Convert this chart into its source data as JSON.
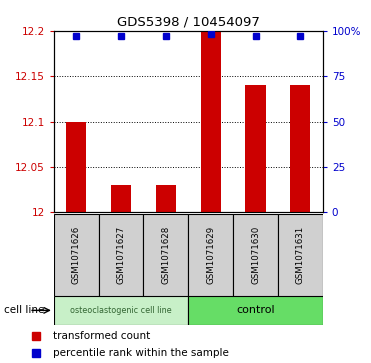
{
  "title": "GDS5398 / 10454097",
  "samples": [
    "GSM1071626",
    "GSM1071627",
    "GSM1071628",
    "GSM1071629",
    "GSM1071630",
    "GSM1071631"
  ],
  "red_values": [
    12.1,
    12.03,
    12.03,
    12.2,
    12.14,
    12.14
  ],
  "blue_values": [
    97,
    97,
    97,
    98,
    97,
    97
  ],
  "ylim_left": [
    12.0,
    12.2
  ],
  "ylim_right": [
    0,
    100
  ],
  "yticks_left": [
    12.0,
    12.05,
    12.1,
    12.15,
    12.2
  ],
  "yticks_right": [
    0,
    25,
    50,
    75,
    100
  ],
  "ytick_labels_left": [
    "12",
    "12.05",
    "12.1",
    "12.15",
    "12.2"
  ],
  "ytick_labels_right": [
    "0",
    "25",
    "50",
    "75",
    "100%"
  ],
  "group1_label": "osteoclastogenic cell line",
  "group1_color": "#C8F0C8",
  "group2_label": "control",
  "group2_color": "#66DD66",
  "group_row_label": "cell line",
  "bar_color": "#CC0000",
  "dot_color": "#0000CC",
  "bar_width": 0.45,
  "sample_box_color": "#D0D0D0",
  "legend_red": "transformed count",
  "legend_blue": "percentile rank within the sample"
}
